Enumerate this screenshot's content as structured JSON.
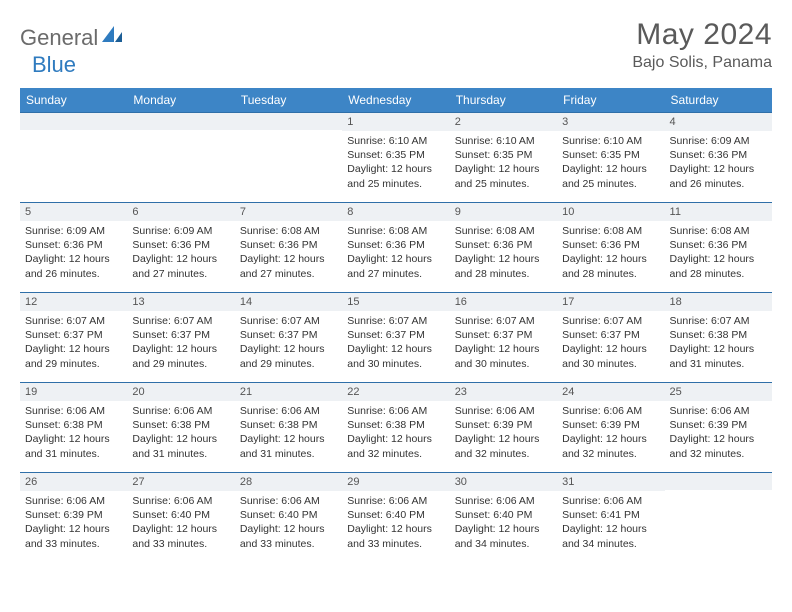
{
  "logo": {
    "part1": "General",
    "part2": "Blue"
  },
  "title": "May 2024",
  "location": "Bajo Solis, Panama",
  "colors": {
    "header_bg": "#3d85c6",
    "header_text": "#ffffff",
    "daynum_bg": "#eef1f4",
    "row_border": "#2f6fa8",
    "title_color": "#5a5a5a",
    "logo_gray": "#6b6b6b",
    "logo_blue": "#2f7bbf"
  },
  "layout": {
    "cols": 7,
    "rows": 5,
    "header_fontsize": 12,
    "daynum_fontsize": 11,
    "detail_fontsize": 10.5
  },
  "day_names": [
    "Sunday",
    "Monday",
    "Tuesday",
    "Wednesday",
    "Thursday",
    "Friday",
    "Saturday"
  ],
  "weeks": [
    [
      {
        "n": "",
        "sr": "",
        "ss": "",
        "dl": ""
      },
      {
        "n": "",
        "sr": "",
        "ss": "",
        "dl": ""
      },
      {
        "n": "",
        "sr": "",
        "ss": "",
        "dl": ""
      },
      {
        "n": "1",
        "sr": "Sunrise: 6:10 AM",
        "ss": "Sunset: 6:35 PM",
        "dl": "Daylight: 12 hours and 25 minutes."
      },
      {
        "n": "2",
        "sr": "Sunrise: 6:10 AM",
        "ss": "Sunset: 6:35 PM",
        "dl": "Daylight: 12 hours and 25 minutes."
      },
      {
        "n": "3",
        "sr": "Sunrise: 6:10 AM",
        "ss": "Sunset: 6:35 PM",
        "dl": "Daylight: 12 hours and 25 minutes."
      },
      {
        "n": "4",
        "sr": "Sunrise: 6:09 AM",
        "ss": "Sunset: 6:36 PM",
        "dl": "Daylight: 12 hours and 26 minutes."
      }
    ],
    [
      {
        "n": "5",
        "sr": "Sunrise: 6:09 AM",
        "ss": "Sunset: 6:36 PM",
        "dl": "Daylight: 12 hours and 26 minutes."
      },
      {
        "n": "6",
        "sr": "Sunrise: 6:09 AM",
        "ss": "Sunset: 6:36 PM",
        "dl": "Daylight: 12 hours and 27 minutes."
      },
      {
        "n": "7",
        "sr": "Sunrise: 6:08 AM",
        "ss": "Sunset: 6:36 PM",
        "dl": "Daylight: 12 hours and 27 minutes."
      },
      {
        "n": "8",
        "sr": "Sunrise: 6:08 AM",
        "ss": "Sunset: 6:36 PM",
        "dl": "Daylight: 12 hours and 27 minutes."
      },
      {
        "n": "9",
        "sr": "Sunrise: 6:08 AM",
        "ss": "Sunset: 6:36 PM",
        "dl": "Daylight: 12 hours and 28 minutes."
      },
      {
        "n": "10",
        "sr": "Sunrise: 6:08 AM",
        "ss": "Sunset: 6:36 PM",
        "dl": "Daylight: 12 hours and 28 minutes."
      },
      {
        "n": "11",
        "sr": "Sunrise: 6:08 AM",
        "ss": "Sunset: 6:36 PM",
        "dl": "Daylight: 12 hours and 28 minutes."
      }
    ],
    [
      {
        "n": "12",
        "sr": "Sunrise: 6:07 AM",
        "ss": "Sunset: 6:37 PM",
        "dl": "Daylight: 12 hours and 29 minutes."
      },
      {
        "n": "13",
        "sr": "Sunrise: 6:07 AM",
        "ss": "Sunset: 6:37 PM",
        "dl": "Daylight: 12 hours and 29 minutes."
      },
      {
        "n": "14",
        "sr": "Sunrise: 6:07 AM",
        "ss": "Sunset: 6:37 PM",
        "dl": "Daylight: 12 hours and 29 minutes."
      },
      {
        "n": "15",
        "sr": "Sunrise: 6:07 AM",
        "ss": "Sunset: 6:37 PM",
        "dl": "Daylight: 12 hours and 30 minutes."
      },
      {
        "n": "16",
        "sr": "Sunrise: 6:07 AM",
        "ss": "Sunset: 6:37 PM",
        "dl": "Daylight: 12 hours and 30 minutes."
      },
      {
        "n": "17",
        "sr": "Sunrise: 6:07 AM",
        "ss": "Sunset: 6:37 PM",
        "dl": "Daylight: 12 hours and 30 minutes."
      },
      {
        "n": "18",
        "sr": "Sunrise: 6:07 AM",
        "ss": "Sunset: 6:38 PM",
        "dl": "Daylight: 12 hours and 31 minutes."
      }
    ],
    [
      {
        "n": "19",
        "sr": "Sunrise: 6:06 AM",
        "ss": "Sunset: 6:38 PM",
        "dl": "Daylight: 12 hours and 31 minutes."
      },
      {
        "n": "20",
        "sr": "Sunrise: 6:06 AM",
        "ss": "Sunset: 6:38 PM",
        "dl": "Daylight: 12 hours and 31 minutes."
      },
      {
        "n": "21",
        "sr": "Sunrise: 6:06 AM",
        "ss": "Sunset: 6:38 PM",
        "dl": "Daylight: 12 hours and 31 minutes."
      },
      {
        "n": "22",
        "sr": "Sunrise: 6:06 AM",
        "ss": "Sunset: 6:38 PM",
        "dl": "Daylight: 12 hours and 32 minutes."
      },
      {
        "n": "23",
        "sr": "Sunrise: 6:06 AM",
        "ss": "Sunset: 6:39 PM",
        "dl": "Daylight: 12 hours and 32 minutes."
      },
      {
        "n": "24",
        "sr": "Sunrise: 6:06 AM",
        "ss": "Sunset: 6:39 PM",
        "dl": "Daylight: 12 hours and 32 minutes."
      },
      {
        "n": "25",
        "sr": "Sunrise: 6:06 AM",
        "ss": "Sunset: 6:39 PM",
        "dl": "Daylight: 12 hours and 32 minutes."
      }
    ],
    [
      {
        "n": "26",
        "sr": "Sunrise: 6:06 AM",
        "ss": "Sunset: 6:39 PM",
        "dl": "Daylight: 12 hours and 33 minutes."
      },
      {
        "n": "27",
        "sr": "Sunrise: 6:06 AM",
        "ss": "Sunset: 6:40 PM",
        "dl": "Daylight: 12 hours and 33 minutes."
      },
      {
        "n": "28",
        "sr": "Sunrise: 6:06 AM",
        "ss": "Sunset: 6:40 PM",
        "dl": "Daylight: 12 hours and 33 minutes."
      },
      {
        "n": "29",
        "sr": "Sunrise: 6:06 AM",
        "ss": "Sunset: 6:40 PM",
        "dl": "Daylight: 12 hours and 33 minutes."
      },
      {
        "n": "30",
        "sr": "Sunrise: 6:06 AM",
        "ss": "Sunset: 6:40 PM",
        "dl": "Daylight: 12 hours and 34 minutes."
      },
      {
        "n": "31",
        "sr": "Sunrise: 6:06 AM",
        "ss": "Sunset: 6:41 PM",
        "dl": "Daylight: 12 hours and 34 minutes."
      },
      {
        "n": "",
        "sr": "",
        "ss": "",
        "dl": ""
      }
    ]
  ]
}
